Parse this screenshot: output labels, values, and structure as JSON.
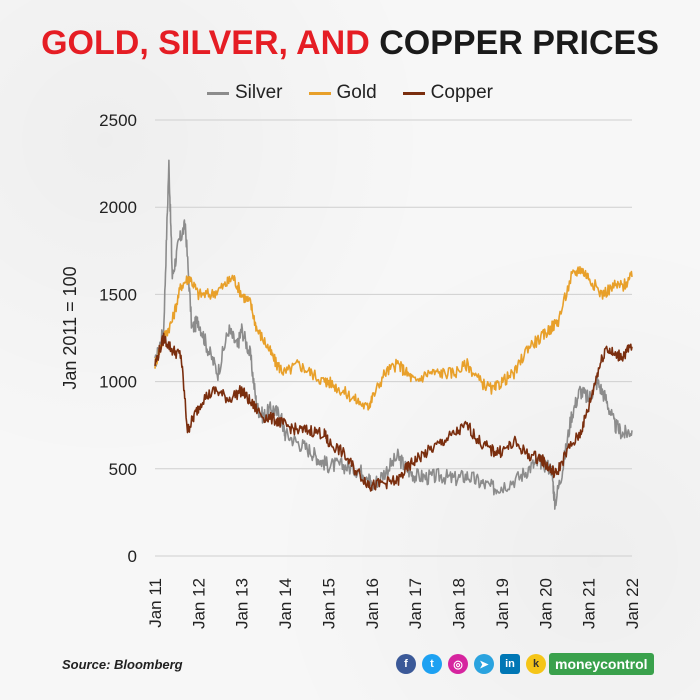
{
  "title_red": "GOLD, SILVER, AND",
  "title_black": "COPPER PRICES",
  "source": "Source: Bloomberg",
  "brand": "moneycontrol",
  "social_icons": [
    "facebook-icon",
    "twitter-icon",
    "instagram-icon",
    "telegram-icon",
    "linkedin-icon",
    "koo-icon"
  ],
  "chart_data": {
    "type": "line",
    "title": "GOLD, SILVER, AND COPPER PRICES",
    "ylabel": "Jan 2011 = 100",
    "xlabel": "",
    "ylim": [
      0,
      2500
    ],
    "yticks": [
      0,
      500,
      1000,
      1500,
      2000,
      2500
    ],
    "xticks": [
      "Jan 11",
      "Jan 12",
      "Jan 13",
      "Jan 14",
      "Jan 15",
      "Jan 16",
      "Jan 17",
      "Jan 18",
      "Jan 19",
      "Jan 20",
      "Jan 21",
      "Jan 22"
    ],
    "legend_position": "top-center",
    "grid": "horizontal",
    "colors": {
      "Silver": "#8c8c8c",
      "Gold": "#e8a02a",
      "Copper": "#7a2e0e"
    },
    "series": [
      {
        "name": "Silver",
        "points": [
          [
            2011.0,
            1100
          ],
          [
            2011.2,
            1300
          ],
          [
            2011.32,
            2250
          ],
          [
            2011.4,
            1600
          ],
          [
            2011.55,
            1800
          ],
          [
            2011.7,
            1900
          ],
          [
            2011.85,
            1300
          ],
          [
            2012.0,
            1350
          ],
          [
            2012.2,
            1200
          ],
          [
            2012.45,
            1050
          ],
          [
            2012.7,
            1300
          ],
          [
            2012.9,
            1200
          ],
          [
            2013.0,
            1300
          ],
          [
            2013.2,
            1150
          ],
          [
            2013.35,
            850
          ],
          [
            2013.5,
            800
          ],
          [
            2013.7,
            850
          ],
          [
            2013.9,
            800
          ],
          [
            2014.0,
            700
          ],
          [
            2014.3,
            650
          ],
          [
            2014.6,
            600
          ],
          [
            2014.8,
            550
          ],
          [
            2015.0,
            520
          ],
          [
            2015.3,
            520
          ],
          [
            2015.6,
            500
          ],
          [
            2015.9,
            470
          ],
          [
            2016.0,
            400
          ],
          [
            2016.3,
            480
          ],
          [
            2016.6,
            570
          ],
          [
            2016.8,
            500
          ],
          [
            2017.0,
            460
          ],
          [
            2017.3,
            450
          ],
          [
            2017.6,
            460
          ],
          [
            2017.9,
            440
          ],
          [
            2018.2,
            460
          ],
          [
            2018.5,
            420
          ],
          [
            2018.8,
            390
          ],
          [
            2019.0,
            400
          ],
          [
            2019.4,
            450
          ],
          [
            2019.7,
            520
          ],
          [
            2019.9,
            540
          ],
          [
            2020.15,
            500
          ],
          [
            2020.22,
            300
          ],
          [
            2020.4,
            500
          ],
          [
            2020.6,
            800
          ],
          [
            2020.8,
            950
          ],
          [
            2021.0,
            900
          ],
          [
            2021.2,
            1000
          ],
          [
            2021.4,
            900
          ],
          [
            2021.6,
            750
          ],
          [
            2021.8,
            700
          ],
          [
            2022.0,
            720
          ]
        ]
      },
      {
        "name": "Gold",
        "points": [
          [
            2011.0,
            1100
          ],
          [
            2011.2,
            1250
          ],
          [
            2011.4,
            1350
          ],
          [
            2011.6,
            1550
          ],
          [
            2011.8,
            1600
          ],
          [
            2012.0,
            1500
          ],
          [
            2012.3,
            1500
          ],
          [
            2012.6,
            1550
          ],
          [
            2012.8,
            1600
          ],
          [
            2013.0,
            1500
          ],
          [
            2013.2,
            1450
          ],
          [
            2013.35,
            1300
          ],
          [
            2013.6,
            1200
          ],
          [
            2013.8,
            1100
          ],
          [
            2014.0,
            1050
          ],
          [
            2014.3,
            1100
          ],
          [
            2014.6,
            1050
          ],
          [
            2014.9,
            1000
          ],
          [
            2015.0,
            1000
          ],
          [
            2015.3,
            950
          ],
          [
            2015.6,
            900
          ],
          [
            2015.9,
            850
          ],
          [
            2016.0,
            900
          ],
          [
            2016.3,
            1050
          ],
          [
            2016.6,
            1100
          ],
          [
            2016.8,
            1050
          ],
          [
            2017.0,
            1000
          ],
          [
            2017.3,
            1050
          ],
          [
            2017.6,
            1050
          ],
          [
            2017.9,
            1050
          ],
          [
            2018.2,
            1100
          ],
          [
            2018.5,
            1000
          ],
          [
            2018.8,
            950
          ],
          [
            2019.0,
            1000
          ],
          [
            2019.3,
            1050
          ],
          [
            2019.6,
            1200
          ],
          [
            2019.9,
            1250
          ],
          [
            2020.1,
            1300
          ],
          [
            2020.3,
            1350
          ],
          [
            2020.6,
            1600
          ],
          [
            2020.8,
            1650
          ],
          [
            2021.0,
            1600
          ],
          [
            2021.3,
            1500
          ],
          [
            2021.6,
            1550
          ],
          [
            2021.8,
            1550
          ],
          [
            2022.0,
            1600
          ]
        ]
      },
      {
        "name": "Copper",
        "points": [
          [
            2011.0,
            1100
          ],
          [
            2011.2,
            1250
          ],
          [
            2011.4,
            1180
          ],
          [
            2011.6,
            1150
          ],
          [
            2011.75,
            720
          ],
          [
            2011.9,
            800
          ],
          [
            2012.1,
            900
          ],
          [
            2012.4,
            950
          ],
          [
            2012.7,
            900
          ],
          [
            2013.0,
            950
          ],
          [
            2013.2,
            880
          ],
          [
            2013.5,
            800
          ],
          [
            2013.8,
            780
          ],
          [
            2014.0,
            750
          ],
          [
            2014.3,
            720
          ],
          [
            2014.6,
            720
          ],
          [
            2014.9,
            700
          ],
          [
            2015.0,
            650
          ],
          [
            2015.3,
            600
          ],
          [
            2015.6,
            500
          ],
          [
            2015.9,
            420
          ],
          [
            2016.0,
            400
          ],
          [
            2016.3,
            420
          ],
          [
            2016.6,
            430
          ],
          [
            2016.8,
            500
          ],
          [
            2017.0,
            550
          ],
          [
            2017.3,
            600
          ],
          [
            2017.6,
            650
          ],
          [
            2017.9,
            700
          ],
          [
            2018.2,
            750
          ],
          [
            2018.5,
            650
          ],
          [
            2018.8,
            600
          ],
          [
            2019.0,
            600
          ],
          [
            2019.3,
            650
          ],
          [
            2019.6,
            580
          ],
          [
            2019.9,
            560
          ],
          [
            2020.1,
            500
          ],
          [
            2020.25,
            470
          ],
          [
            2020.5,
            600
          ],
          [
            2020.8,
            700
          ],
          [
            2021.0,
            850
          ],
          [
            2021.2,
            1050
          ],
          [
            2021.4,
            1200
          ],
          [
            2021.6,
            1150
          ],
          [
            2021.8,
            1150
          ],
          [
            2022.0,
            1200
          ]
        ]
      }
    ]
  }
}
